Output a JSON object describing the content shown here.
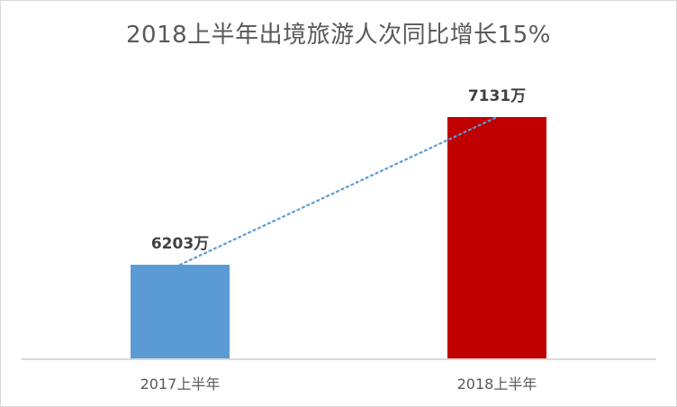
{
  "chart_data": {
    "type": "bar",
    "title": "2018上半年出境旅游人次同比增长15%",
    "categories": [
      "2017上半年",
      "2018上半年"
    ],
    "values": [
      6203,
      7131
    ],
    "unit": "万",
    "data_labels": [
      "6203万",
      "7131万"
    ],
    "bar_colors": [
      "#5b9bd5",
      "#c00000"
    ],
    "xlabel": "",
    "ylabel": "",
    "grid": false,
    "legend": "none",
    "trendline": {
      "style": "dotted",
      "color": "#5b9bd5",
      "type": "linear"
    }
  },
  "ui": {
    "axis_color": "#d9d9d9",
    "border_color": "#d9d9d9"
  }
}
